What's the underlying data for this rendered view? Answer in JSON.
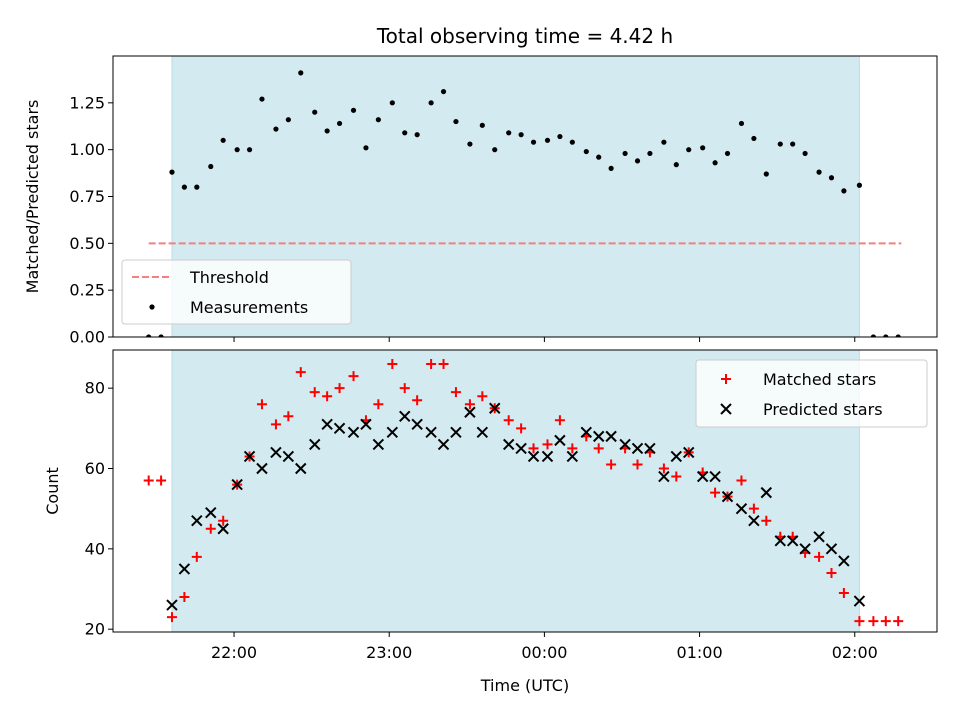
{
  "colors": {
    "observing_window": "#d3eaf0",
    "threshold": "#f28080",
    "measurements": "#000000",
    "matched": "#ff0000",
    "predicted": "#000000"
  },
  "chart_data": [
    {
      "type": "scatter",
      "title": "Total observing time = 4.42 h",
      "xlabel": "",
      "ylabel": "Matched/Predicted stars",
      "x_unit": "hours since 00:00 UTC",
      "xlim": [
        -2.78,
        2.53
      ],
      "ylim": [
        0.0,
        1.5
      ],
      "yticks": [
        "0.00",
        "0.25",
        "0.50",
        "0.75",
        "1.00",
        "1.25"
      ],
      "ytick_values": [
        0.0,
        0.25,
        0.5,
        0.75,
        1.0,
        1.25
      ],
      "observing_window": {
        "start": -2.4,
        "end": 2.03
      },
      "threshold": {
        "value": 0.5,
        "x_range": [
          -2.55,
          2.3
        ]
      },
      "legend": {
        "placement": "lower-left",
        "entries": [
          "Threshold",
          "Measurements"
        ]
      },
      "series": [
        {
          "name": "Measurements",
          "x": [
            -2.55,
            -2.47,
            -2.4,
            -2.32,
            -2.24,
            -2.15,
            -2.07,
            -1.98,
            -1.9,
            -1.82,
            -1.73,
            -1.65,
            -1.57,
            -1.48,
            -1.4,
            -1.32,
            -1.23,
            -1.15,
            -1.07,
            -0.98,
            -0.9,
            -0.82,
            -0.73,
            -0.65,
            -0.57,
            -0.48,
            -0.4,
            -0.32,
            -0.23,
            -0.15,
            -0.07,
            0.02,
            0.1,
            0.18,
            0.27,
            0.35,
            0.43,
            0.52,
            0.6,
            0.68,
            0.77,
            0.85,
            0.93,
            1.02,
            1.1,
            1.18,
            1.27,
            1.35,
            1.43,
            1.52,
            1.6,
            1.68,
            1.77,
            1.85,
            1.93,
            2.03,
            2.12,
            2.2,
            2.28
          ],
          "y": [
            0.0,
            0.0,
            0.88,
            0.8,
            0.8,
            0.91,
            1.05,
            1.0,
            1.0,
            1.27,
            1.11,
            1.16,
            1.41,
            1.2,
            1.1,
            1.14,
            1.21,
            1.01,
            1.16,
            1.25,
            1.09,
            1.08,
            1.25,
            1.31,
            1.15,
            1.03,
            1.13,
            1.0,
            1.09,
            1.08,
            1.04,
            1.05,
            1.07,
            1.04,
            0.99,
            0.96,
            0.9,
            0.98,
            0.94,
            0.98,
            1.04,
            0.92,
            1.0,
            1.01,
            0.93,
            0.98,
            1.14,
            1.06,
            0.87,
            1.03,
            1.03,
            0.98,
            0.88,
            0.85,
            0.78,
            0.81,
            0.0,
            0.0,
            0.0
          ]
        }
      ]
    },
    {
      "type": "scatter",
      "title": "",
      "xlabel": "Time (UTC)",
      "ylabel": "Count",
      "x_unit": "hours since 00:00 UTC",
      "xlim": [
        -2.78,
        2.53
      ],
      "ylim": [
        19.3,
        89.5
      ],
      "yticks": [
        "20",
        "40",
        "60",
        "80"
      ],
      "ytick_values": [
        20,
        40,
        60,
        80
      ],
      "xticks": [
        "22:00",
        "23:00",
        "00:00",
        "01:00",
        "02:00"
      ],
      "xtick_values": [
        -2,
        -1,
        0,
        1,
        2
      ],
      "observing_window": {
        "start": -2.4,
        "end": 2.03
      },
      "legend": {
        "placement": "upper-right",
        "entries": [
          "Matched stars",
          "Predicted stars"
        ]
      },
      "series": [
        {
          "name": "Matched stars",
          "x": [
            -2.55,
            -2.47,
            -2.4,
            -2.32,
            -2.24,
            -2.15,
            -2.07,
            -1.98,
            -1.9,
            -1.82,
            -1.73,
            -1.65,
            -1.57,
            -1.48,
            -1.4,
            -1.32,
            -1.23,
            -1.15,
            -1.07,
            -0.98,
            -0.9,
            -0.82,
            -0.73,
            -0.65,
            -0.57,
            -0.48,
            -0.4,
            -0.32,
            -0.23,
            -0.15,
            -0.07,
            0.02,
            0.1,
            0.18,
            0.27,
            0.35,
            0.43,
            0.52,
            0.6,
            0.68,
            0.77,
            0.85,
            0.93,
            1.02,
            1.1,
            1.18,
            1.27,
            1.35,
            1.43,
            1.52,
            1.6,
            1.68,
            1.77,
            1.85,
            1.93,
            2.03,
            2.12,
            2.2,
            2.28
          ],
          "y": [
            57,
            57,
            23,
            28,
            38,
            45,
            47,
            56,
            63,
            76,
            71,
            73,
            84,
            79,
            78,
            80,
            83,
            72,
            76,
            86,
            80,
            77,
            86,
            86,
            79,
            76,
            78,
            75,
            72,
            70,
            65,
            66,
            72,
            65,
            68,
            65,
            61,
            65,
            61,
            64,
            60,
            58,
            64,
            59,
            54,
            53,
            57,
            50,
            47,
            43,
            43,
            39,
            38,
            34,
            29,
            22,
            22,
            22,
            22
          ]
        },
        {
          "name": "Predicted stars",
          "x": [
            -2.4,
            -2.32,
            -2.24,
            -2.15,
            -2.07,
            -1.98,
            -1.9,
            -1.82,
            -1.73,
            -1.65,
            -1.57,
            -1.48,
            -1.4,
            -1.32,
            -1.23,
            -1.15,
            -1.07,
            -0.98,
            -0.9,
            -0.82,
            -0.73,
            -0.65,
            -0.57,
            -0.48,
            -0.4,
            -0.32,
            -0.23,
            -0.15,
            -0.07,
            0.02,
            0.1,
            0.18,
            0.27,
            0.35,
            0.43,
            0.52,
            0.6,
            0.68,
            0.77,
            0.85,
            0.93,
            1.02,
            1.1,
            1.18,
            1.27,
            1.35,
            1.43,
            1.52,
            1.6,
            1.68,
            1.77,
            1.85,
            1.93,
            2.03
          ],
          "y": [
            26,
            35,
            47,
            49,
            45,
            56,
            63,
            60,
            64,
            63,
            60,
            66,
            71,
            70,
            69,
            71,
            66,
            69,
            73,
            71,
            69,
            66,
            69,
            74,
            69,
            75,
            66,
            65,
            63,
            63,
            67,
            63,
            69,
            68,
            68,
            66,
            65,
            65,
            58,
            63,
            64,
            58,
            58,
            53,
            50,
            47,
            54,
            42,
            42,
            40,
            43,
            40,
            37,
            27
          ]
        }
      ]
    }
  ]
}
